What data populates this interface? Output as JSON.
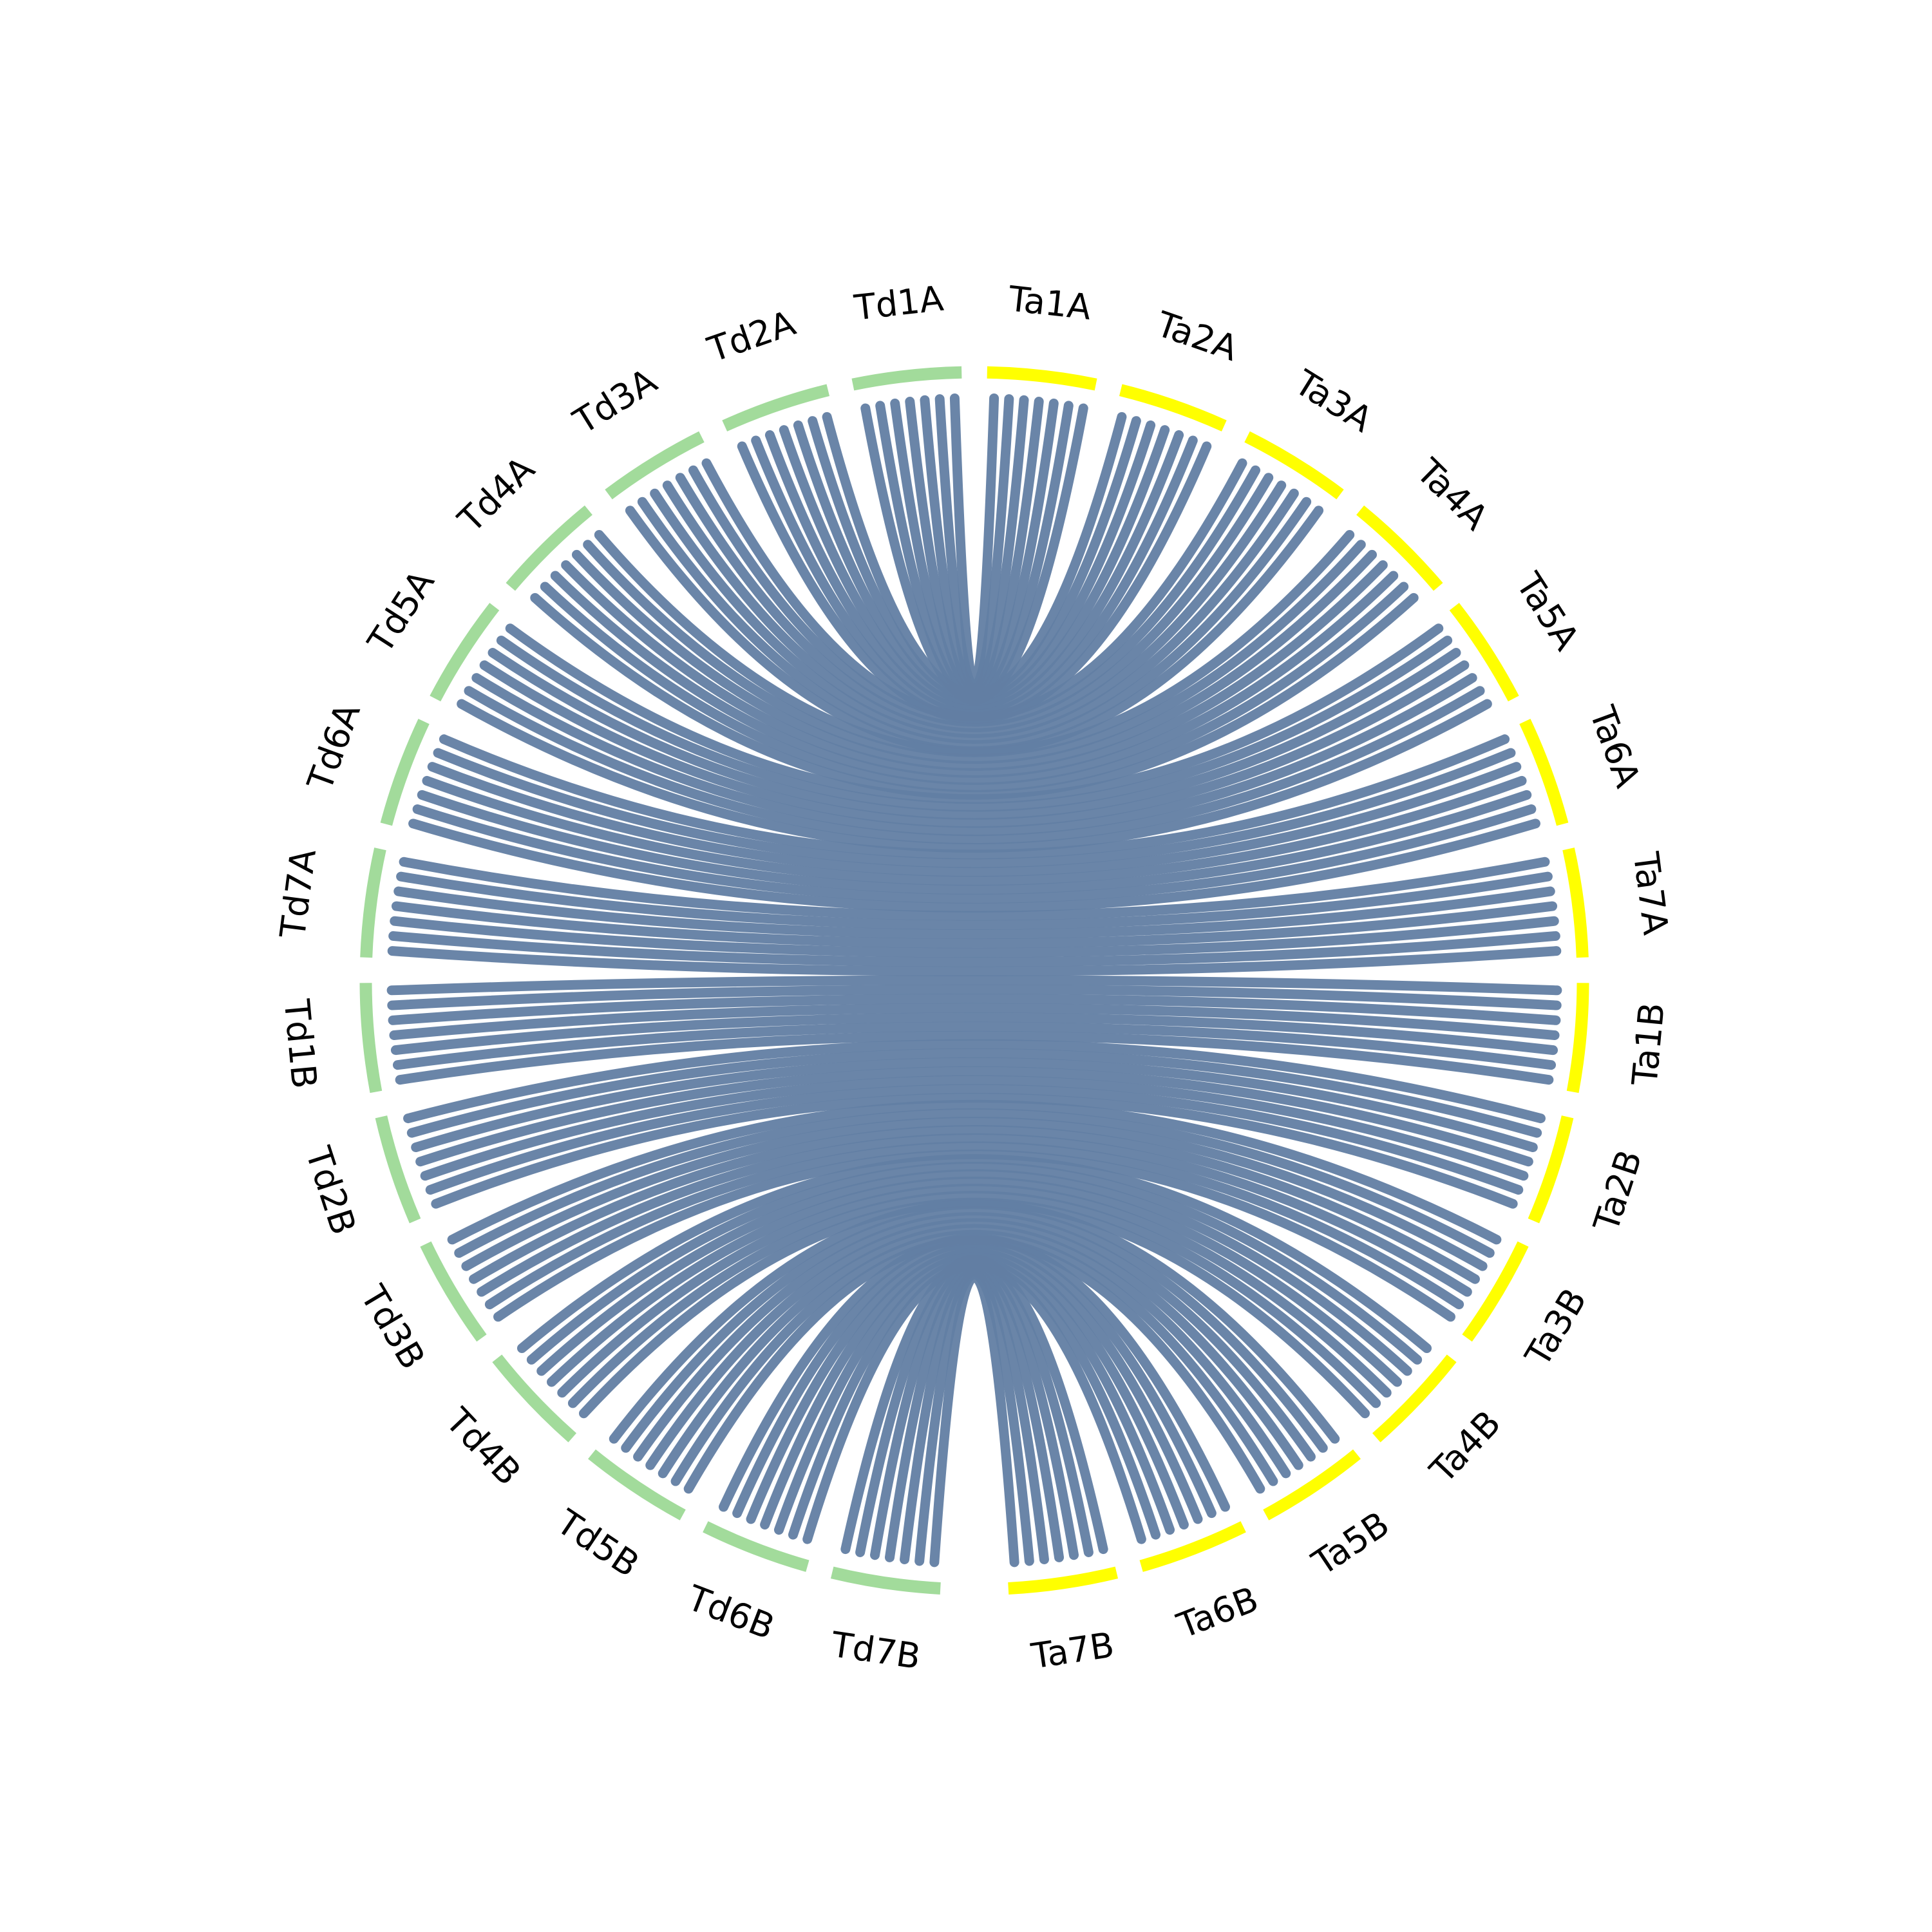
{
  "groups": [
    {
      "color": "#ffff00",
      "labels": [
        "Ta1A",
        "Ta2A",
        "Ta3A",
        "Ta4A",
        "Ta5A",
        "Ta6A",
        "Ta7A",
        "Ta1B",
        "Ta2B",
        "Ta3B",
        "Ta4B",
        "Ta5B",
        "Ta6B",
        "Ta7B"
      ]
    },
    {
      "color": "#a2db9b",
      "labels": [
        "Td1A",
        "Td2A",
        "Td3A",
        "Td4A",
        "Td5A",
        "Td6A",
        "Td7A",
        "Td1B",
        "Td2B",
        "Td3B",
        "Td4B",
        "Td5B",
        "Td6B",
        "Td7B"
      ]
    }
  ],
  "link_color": "#627ea3"
}
